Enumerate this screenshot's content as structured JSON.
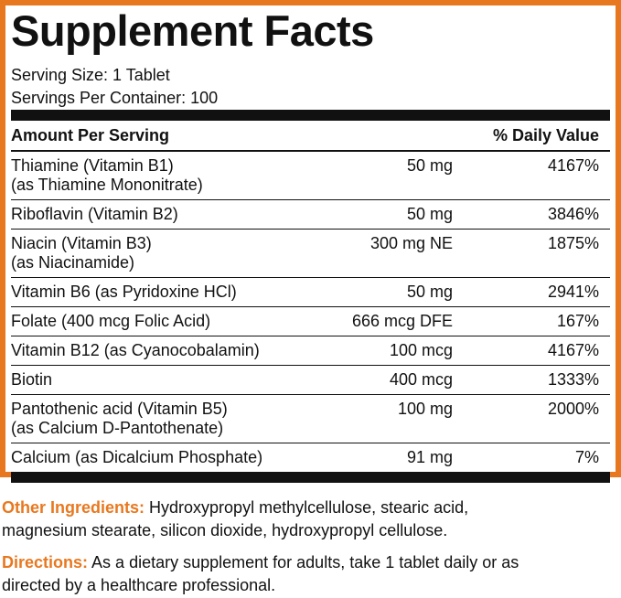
{
  "header": {
    "title": "Supplement Facts",
    "serving_size": "Serving Size: 1 Tablet",
    "servings_per_container": "Servings Per Container: 100"
  },
  "table": {
    "columns": [
      "Amount Per Serving",
      "% Daily Value"
    ],
    "rows": [
      {
        "name": [
          "Thiamine (Vitamin B1)",
          "(as Thiamine Mononitrate)"
        ],
        "amount": "50 mg",
        "dv": "4167%"
      },
      {
        "name": [
          "Riboflavin (Vitamin B2)"
        ],
        "amount": "50 mg",
        "dv": "3846%"
      },
      {
        "name": [
          "Niacin (Vitamin B3)",
          "(as Niacinamide)"
        ],
        "amount": "300 mg NE",
        "dv": "1875%"
      },
      {
        "name": [
          "Vitamin B6 (as Pyridoxine HCl)"
        ],
        "amount": "50 mg",
        "dv": "2941%"
      },
      {
        "name": [
          "Folate (400 mcg Folic Acid)"
        ],
        "amount": "666 mcg DFE",
        "dv": "167%"
      },
      {
        "name": [
          "Vitamin B12 (as Cyanocobalamin)"
        ],
        "amount": "100 mcg",
        "dv": "4167%"
      },
      {
        "name": [
          "Biotin"
        ],
        "amount": "400 mcg",
        "dv": "1333%"
      },
      {
        "name": [
          "Pantothenic acid (Vitamin B5)",
          "(as Calcium D-Pantothenate)"
        ],
        "amount": "100 mg",
        "dv": "2000%"
      },
      {
        "name": [
          "Calcium (as Dicalcium Phosphate)"
        ],
        "amount": "91 mg",
        "dv": "7%"
      }
    ]
  },
  "notes": [
    {
      "label": "Other Ingredients:",
      "lines": [
        "Hydroxypropyl methylcellulose, stearic acid,",
        "magnesium stearate, silicon dioxide, hydroxypropyl cellulose."
      ]
    },
    {
      "label": "Directions:",
      "lines": [
        "As a dietary supplement for adults, take 1 tablet daily or as",
        "directed by a healthcare professional."
      ]
    }
  ]
}
